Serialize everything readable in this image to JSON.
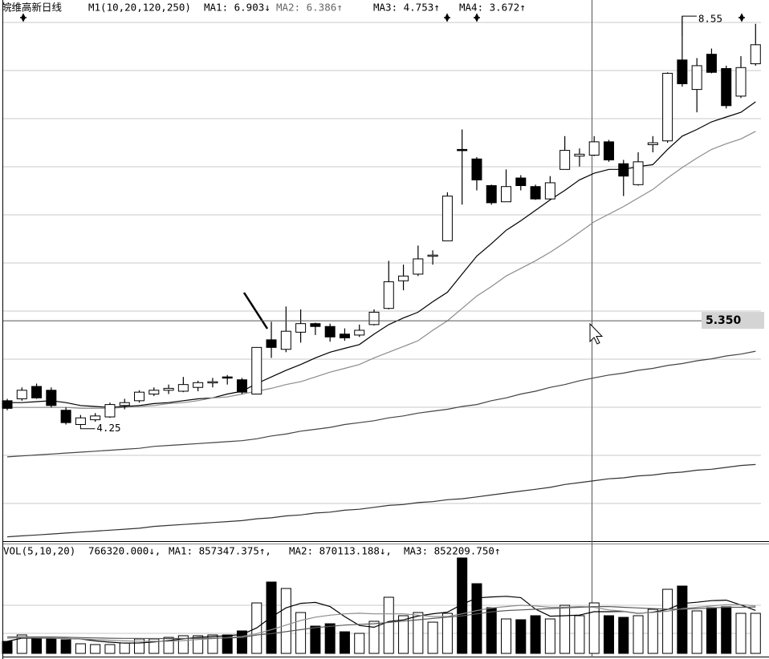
{
  "header": {
    "title": "皖维高新日线",
    "indicator": "M1(10,20,120,250)"
  },
  "chart_data": {
    "type": "candlestick",
    "ylim": [
      3.06,
      8.72
    ],
    "open": [
      4.51,
      4.53,
      4.66,
      4.62,
      4.41,
      4.26,
      4.31,
      4.34,
      4.46,
      4.51,
      4.58,
      4.62,
      4.61,
      4.65,
      4.7,
      4.76,
      4.73,
      4.58,
      5.15,
      5.05,
      5.23,
      5.32,
      5.29,
      5.21,
      5.2,
      5.31,
      5.48,
      5.77,
      5.84,
      6.03,
      6.19,
      7.15,
      7.05,
      6.77,
      6.6,
      6.85,
      6.76,
      6.63,
      6.94,
      7.08,
      7.09,
      7.23,
      7.0,
      6.78,
      7.2,
      7.24,
      8.09,
      7.78,
      8.15,
      8.0,
      7.71,
      8.05
    ],
    "high": [
      4.53,
      4.65,
      4.69,
      4.65,
      4.44,
      4.36,
      4.38,
      4.49,
      4.53,
      4.62,
      4.65,
      4.68,
      4.76,
      4.72,
      4.75,
      4.78,
      4.75,
      5.07,
      5.34,
      5.5,
      5.47,
      5.33,
      5.32,
      5.27,
      5.31,
      5.47,
      5.98,
      5.94,
      6.14,
      6.09,
      6.7,
      7.36,
      7.07,
      6.78,
      6.94,
      6.88,
      6.78,
      6.87,
      7.29,
      7.16,
      7.29,
      7.25,
      7.04,
      7.12,
      7.29,
      7.96,
      8.55,
      8.11,
      8.21,
      8.03,
      8.13,
      8.47
    ],
    "low": [
      4.41,
      4.51,
      4.53,
      4.44,
      4.26,
      4.25,
      4.29,
      4.33,
      4.42,
      4.49,
      4.56,
      4.58,
      4.6,
      4.61,
      4.65,
      4.68,
      4.58,
      4.58,
      4.96,
      5.02,
      5.12,
      5.2,
      5.13,
      5.14,
      5.18,
      5.3,
      5.47,
      5.67,
      5.82,
      5.94,
      6.19,
      6.57,
      6.72,
      6.57,
      6.6,
      6.72,
      6.62,
      6.62,
      6.94,
      6.97,
      7.08,
      7.02,
      6.66,
      6.77,
      7.12,
      7.22,
      7.81,
      7.54,
      7.95,
      7.58,
      7.69,
      8.03
    ],
    "close": [
      4.43,
      4.62,
      4.54,
      4.46,
      4.28,
      4.33,
      4.35,
      4.47,
      4.49,
      4.6,
      4.62,
      4.64,
      4.68,
      4.7,
      4.71,
      4.75,
      4.6,
      5.07,
      5.07,
      5.24,
      5.32,
      5.29,
      5.18,
      5.17,
      5.25,
      5.44,
      5.76,
      5.82,
      6.0,
      6.04,
      6.66,
      7.14,
      6.83,
      6.59,
      6.76,
      6.77,
      6.63,
      6.8,
      7.14,
      7.1,
      7.23,
      7.04,
      6.87,
      7.02,
      7.22,
      7.95,
      7.84,
      8.03,
      7.96,
      7.61,
      8.01,
      8.25
    ],
    "series": [
      {
        "name": "MA1: 6.903↓",
        "color": "#000000",
        "values": [
          4.49,
          4.49,
          4.5,
          4.51,
          4.49,
          4.46,
          4.45,
          4.44,
          4.45,
          4.46,
          4.48,
          4.49,
          4.51,
          4.53,
          4.54,
          4.58,
          4.61,
          4.69,
          4.76,
          4.83,
          4.89,
          4.96,
          5.02,
          5.06,
          5.1,
          5.21,
          5.31,
          5.38,
          5.44,
          5.55,
          5.65,
          5.84,
          6.03,
          6.16,
          6.3,
          6.4,
          6.51,
          6.62,
          6.72,
          6.83,
          6.9,
          6.94,
          6.94,
          6.97,
          6.99,
          7.15,
          7.29,
          7.36,
          7.44,
          7.49,
          7.54,
          7.65
        ]
      },
      {
        "name": "MA2: 6.386↑",
        "color": "#8c8c8c",
        "values": [
          4.44,
          4.44,
          4.44,
          4.44,
          4.44,
          4.43,
          4.43,
          4.43,
          4.44,
          4.45,
          4.46,
          4.48,
          4.49,
          4.51,
          4.54,
          4.55,
          4.58,
          4.61,
          4.64,
          4.68,
          4.71,
          4.76,
          4.81,
          4.85,
          4.89,
          4.96,
          5.02,
          5.08,
          5.14,
          5.25,
          5.35,
          5.48,
          5.61,
          5.71,
          5.82,
          5.9,
          5.98,
          6.07,
          6.17,
          6.28,
          6.39,
          6.47,
          6.55,
          6.64,
          6.73,
          6.85,
          6.96,
          7.06,
          7.15,
          7.21,
          7.26,
          7.34
        ]
      },
      {
        "name": "MA3: 4.753↑",
        "color": "#444444",
        "values": [
          3.92,
          3.93,
          3.94,
          3.95,
          3.96,
          3.97,
          3.98,
          3.99,
          4.0,
          4.01,
          4.03,
          4.04,
          4.05,
          4.06,
          4.07,
          4.08,
          4.09,
          4.11,
          4.14,
          4.16,
          4.19,
          4.21,
          4.23,
          4.26,
          4.28,
          4.3,
          4.33,
          4.35,
          4.38,
          4.4,
          4.42,
          4.45,
          4.47,
          4.51,
          4.54,
          4.58,
          4.61,
          4.65,
          4.68,
          4.72,
          4.75,
          4.78,
          4.8,
          4.83,
          4.85,
          4.88,
          4.9,
          4.93,
          4.95,
          4.98,
          5.0,
          5.03
        ]
      },
      {
        "name": "MA4: 3.672↑",
        "color": "#333333",
        "values": [
          3.08,
          3.09,
          3.1,
          3.11,
          3.12,
          3.13,
          3.14,
          3.15,
          3.16,
          3.17,
          3.19,
          3.2,
          3.21,
          3.22,
          3.23,
          3.24,
          3.25,
          3.27,
          3.28,
          3.3,
          3.31,
          3.33,
          3.34,
          3.36,
          3.37,
          3.39,
          3.41,
          3.42,
          3.44,
          3.45,
          3.47,
          3.48,
          3.5,
          3.52,
          3.54,
          3.56,
          3.58,
          3.6,
          3.63,
          3.65,
          3.67,
          3.69,
          3.7,
          3.72,
          3.73,
          3.75,
          3.76,
          3.78,
          3.79,
          3.81,
          3.83,
          3.84
        ]
      }
    ],
    "high_label": 8.55,
    "low_label": 4.25,
    "cursor": {
      "value": 5.35,
      "label": "5.350"
    },
    "volume": {
      "name": "VOL(5,10,20)",
      "value_label": "766320.000↓,",
      "ylim": [
        0,
        1460000
      ],
      "values": [
        182000,
        280000,
        231000,
        231000,
        207000,
        146000,
        134000,
        134000,
        158000,
        219000,
        219000,
        243000,
        268000,
        268000,
        280000,
        280000,
        341000,
        766000,
        1083000,
        985000,
        620000,
        414000,
        450000,
        328000,
        304000,
        487000,
        852000,
        572000,
        620000,
        474000,
        608000,
        1448000,
        1058000,
        693000,
        523000,
        511000,
        572000,
        523000,
        730000,
        572000,
        766320,
        572000,
        547000,
        572000,
        669000,
        973000,
        1022000,
        645000,
        693000,
        706000,
        608000,
        608000
      ],
      "series": [
        {
          "name": "MA1: 857347.375↑,",
          "color": "#000000",
          "values": [
            182000,
            231000,
            231000,
            231000,
            226000,
            219000,
            190000,
            170000,
            156000,
            158000,
            173000,
            195000,
            221000,
            243000,
            256000,
            268000,
            287000,
            387000,
            550000,
            691000,
            759000,
            774000,
            710000,
            559000,
            423000,
            397000,
            484000,
            509000,
            567000,
            601000,
            625000,
            744000,
            842000,
            856000,
            866000,
            847000,
            671000,
            564000,
            572000,
            582000,
            633000,
            633000,
            637000,
            606000,
            625000,
            667000,
            757000,
            776000,
            800000,
            808000,
            735000,
            652000
          ]
        },
        {
          "name": "MA2: 870113.188↓,",
          "color": "#8c8c8c",
          "values": [
            230000,
            240000,
            235000,
            232000,
            226000,
            220000,
            210000,
            200000,
            190000,
            185000,
            182000,
            185000,
            195000,
            210000,
            225000,
            240000,
            255000,
            300000,
            360000,
            430000,
            500000,
            550000,
            580000,
            600000,
            610000,
            600000,
            600000,
            600000,
            580000,
            560000,
            560000,
            600000,
            650000,
            690000,
            710000,
            730000,
            720000,
            700000,
            700000,
            710000,
            700000,
            660000,
            640000,
            610000,
            620000,
            640000,
            680000,
            700000,
            720000,
            740000,
            740000,
            720000
          ]
        },
        {
          "name": "MA3: 852209.750↑",
          "color": "#5a5a5a",
          "values": [
            250000,
            250000,
            250000,
            250000,
            245000,
            240000,
            235000,
            230000,
            228000,
            226000,
            225000,
            225000,
            226000,
            228000,
            230000,
            235000,
            240000,
            280000,
            300000,
            330000,
            360000,
            390000,
            410000,
            430000,
            440000,
            450000,
            470000,
            490000,
            510000,
            530000,
            550000,
            570000,
            600000,
            630000,
            650000,
            660000,
            670000,
            680000,
            690000,
            700000,
            710000,
            710000,
            700000,
            690000,
            680000,
            670000,
            670000,
            680000,
            690000,
            700000,
            700000,
            705000
          ]
        }
      ]
    }
  }
}
